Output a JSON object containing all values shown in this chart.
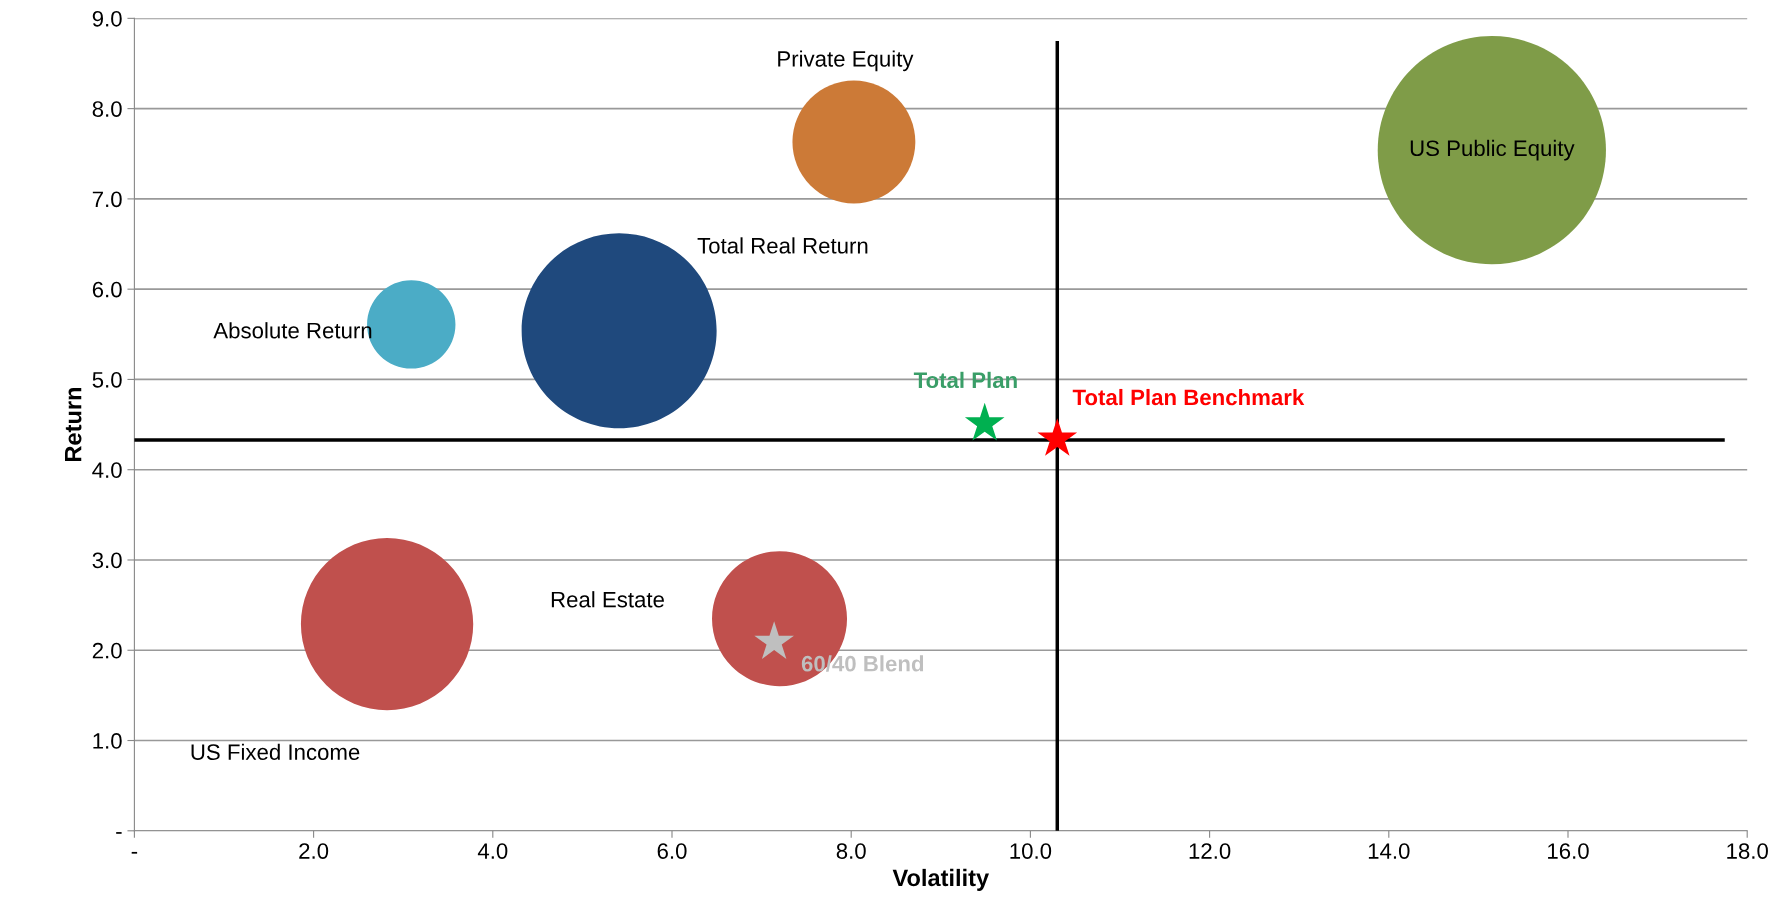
{
  "chart_data": {
    "type": "bubble",
    "xlabel": "Volatility",
    "ylabel": "Return",
    "xlim": [
      0,
      18
    ],
    "ylim": [
      0,
      9
    ],
    "xticks": [
      {
        "value": 0,
        "label": "-"
      },
      {
        "value": 2,
        "label": "2.0"
      },
      {
        "value": 4,
        "label": "4.0"
      },
      {
        "value": 6,
        "label": "6.0"
      },
      {
        "value": 8,
        "label": "8.0"
      },
      {
        "value": 10,
        "label": "10.0"
      },
      {
        "value": 12,
        "label": "12.0"
      },
      {
        "value": 14,
        "label": "14.0"
      },
      {
        "value": 16,
        "label": "16.0"
      },
      {
        "value": 18,
        "label": "18.0"
      }
    ],
    "yticks": [
      {
        "value": 0,
        "label": "-"
      },
      {
        "value": 1,
        "label": "1.0"
      },
      {
        "value": 2,
        "label": "2.0"
      },
      {
        "value": 3,
        "label": "3.0"
      },
      {
        "value": 4,
        "label": "4.0"
      },
      {
        "value": 5,
        "label": "5.0"
      },
      {
        "value": 6,
        "label": "6.0"
      },
      {
        "value": 7,
        "label": "7.0"
      },
      {
        "value": 8,
        "label": "8.0"
      },
      {
        "value": 9,
        "label": "9.0"
      }
    ],
    "grid": "y",
    "legend": false,
    "series": [
      {
        "name": "Private Equity",
        "color": "#cc7a37",
        "x": [
          8.03
        ],
        "values": [
          7.63
        ],
        "sizes": [
          0.29
        ]
      },
      {
        "name": "US Public Equity",
        "color": "#7f9c48",
        "x": [
          15.15
        ],
        "values": [
          7.54
        ],
        "sizes": [
          1
        ]
      },
      {
        "name": "Total Real Return",
        "color": "#1f497d",
        "x": [
          5.41
        ],
        "values": [
          5.54
        ],
        "sizes": [
          0.73
        ]
      },
      {
        "name": "Absolute Return",
        "color": "#4bacc6",
        "x": [
          3.09
        ],
        "values": [
          5.61
        ],
        "sizes": [
          0.15
        ]
      },
      {
        "name": "US Fixed Income",
        "color": "#c0504d",
        "x": [
          2.82
        ],
        "values": [
          2.29
        ],
        "sizes": [
          0.57
        ]
      },
      {
        "name": "Real Estate",
        "color": "#c0504d",
        "x": [
          7.2
        ],
        "values": [
          2.35
        ],
        "sizes": [
          0.35
        ]
      },
      {
        "name": "Total Plan",
        "type": "scatter",
        "marker": "star",
        "color": "#00b050",
        "x": [
          9.49
        ],
        "values": [
          4.51
        ]
      },
      {
        "name": "Total Plan Benchmark",
        "type": "scatter",
        "marker": "star",
        "color": "#ff0000",
        "x": [
          10.3
        ],
        "values": [
          4.34
        ]
      },
      {
        "name": "60/40 Blend",
        "type": "scatter",
        "marker": "star",
        "color": "#bfbfbf",
        "x": [
          7.14
        ],
        "values": [
          2.09
        ]
      }
    ],
    "ref_lines": [
      {
        "axis": "x",
        "value": 10.3,
        "color": "#000000"
      },
      {
        "axis": "y",
        "value": 4.33,
        "color": "#000000"
      }
    ]
  }
}
